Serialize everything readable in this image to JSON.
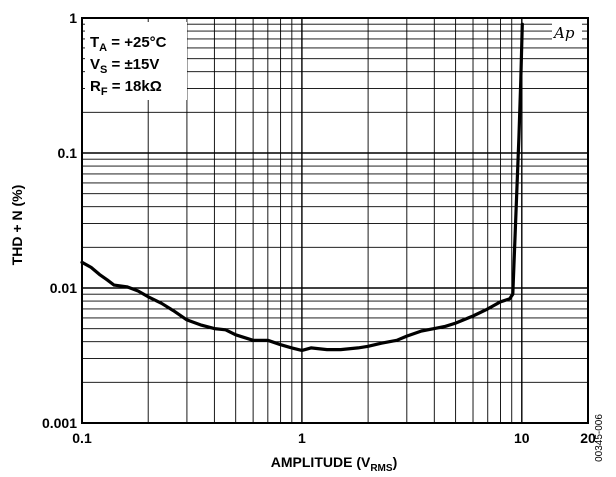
{
  "chart_data": {
    "type": "line",
    "title": "",
    "xlabel": {
      "main": "AMPLITUDE (V",
      "sub": "RMS",
      "end": ")"
    },
    "ylabel": "THD + N (%)",
    "xscale": "log",
    "yscale": "log",
    "xlim": [
      0.1,
      20
    ],
    "ylim": [
      0.001,
      1
    ],
    "x_ticks": [
      {
        "value": 0.1,
        "label": "0.1"
      },
      {
        "value": 1,
        "label": "1"
      },
      {
        "value": 10,
        "label": "10"
      },
      {
        "value": 20,
        "label": "20"
      }
    ],
    "y_ticks": [
      {
        "value": 1,
        "label": "1"
      },
      {
        "value": 0.1,
        "label": "0.1"
      },
      {
        "value": 0.01,
        "label": "0.01"
      },
      {
        "value": 0.001,
        "label": "0.001"
      }
    ],
    "grid": true,
    "conditions": [
      {
        "main": "T",
        "sub": "A",
        "rest": " = +25°C"
      },
      {
        "main": "V",
        "sub": "S",
        "rest": " = ±15V"
      },
      {
        "main": "R",
        "sub": "F",
        "rest": " = 18kΩ"
      }
    ],
    "logo_text": "Ap",
    "figure_code": "00345-006",
    "series": [
      {
        "color": "#000000",
        "points": [
          [
            0.1,
            0.0155
          ],
          [
            0.11,
            0.0142
          ],
          [
            0.12,
            0.0126
          ],
          [
            0.13,
            0.0115
          ],
          [
            0.14,
            0.0105
          ],
          [
            0.16,
            0.0102
          ],
          [
            0.18,
            0.0095
          ],
          [
            0.2,
            0.0086
          ],
          [
            0.23,
            0.0077
          ],
          [
            0.26,
            0.0068
          ],
          [
            0.3,
            0.0058
          ],
          [
            0.35,
            0.0053
          ],
          [
            0.4,
            0.005
          ],
          [
            0.45,
            0.0049
          ],
          [
            0.5,
            0.0045
          ],
          [
            0.6,
            0.0041
          ],
          [
            0.7,
            0.0041
          ],
          [
            0.8,
            0.0038
          ],
          [
            0.9,
            0.0036
          ],
          [
            1.0,
            0.00345
          ],
          [
            1.1,
            0.0036
          ],
          [
            1.3,
            0.0035
          ],
          [
            1.5,
            0.0035
          ],
          [
            1.8,
            0.0036
          ],
          [
            2.0,
            0.0037
          ],
          [
            2.3,
            0.0039
          ],
          [
            2.7,
            0.0041
          ],
          [
            3.0,
            0.0044
          ],
          [
            3.5,
            0.0048
          ],
          [
            4.0,
            0.005
          ],
          [
            4.5,
            0.0052
          ],
          [
            5.0,
            0.0055
          ],
          [
            6.0,
            0.0062
          ],
          [
            7.0,
            0.007
          ],
          [
            8.0,
            0.0079
          ],
          [
            8.8,
            0.0083
          ],
          [
            9.1,
            0.009
          ],
          [
            9.4,
            0.035
          ],
          [
            9.7,
            0.13
          ],
          [
            9.9,
            0.35
          ],
          [
            10.05,
            0.9
          ]
        ]
      }
    ]
  }
}
